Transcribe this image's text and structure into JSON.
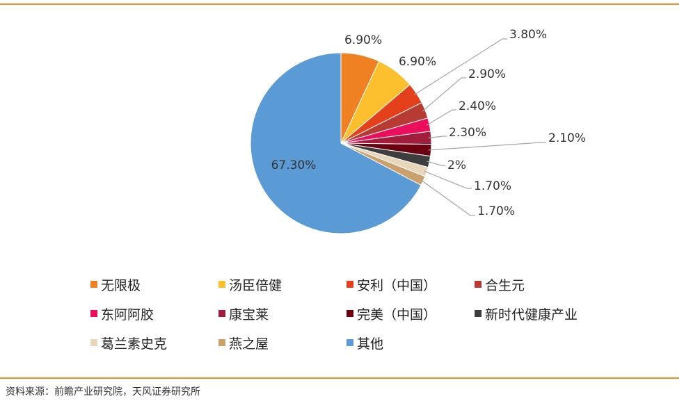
{
  "chart_data": {
    "type": "pie",
    "slices": [
      {
        "name": "无限极",
        "value": 6.9,
        "label": "6.90%",
        "color": "#f08122"
      },
      {
        "name": "汤臣倍健",
        "value": 6.9,
        "label": "6.90%",
        "color": "#fcbf2d"
      },
      {
        "name": "安利（中国）",
        "value": 3.8,
        "label": "3.80%",
        "color": "#e5401c"
      },
      {
        "name": "合生元",
        "value": 2.9,
        "label": "2.90%",
        "color": "#b73a33"
      },
      {
        "name": "东阿阿胶",
        "value": 2.4,
        "label": "2.40%",
        "color": "#ea0e5c"
      },
      {
        "name": "康宝莱",
        "value": 2.3,
        "label": "2.30%",
        "color": "#a01e3c"
      },
      {
        "name": "完美（中国）",
        "value": 2.1,
        "label": "2.10%",
        "color": "#6a0010"
      },
      {
        "name": "新时代健康产业",
        "value": 2.0,
        "label": "2%",
        "color": "#3e3e3e"
      },
      {
        "name": "葛兰素史克",
        "value": 1.7,
        "label": "1.70%",
        "color": "#e8d6bb"
      },
      {
        "name": "燕之屋",
        "value": 1.7,
        "label": "1.70%",
        "color": "#caa06c"
      },
      {
        "name": "其他",
        "value": 67.3,
        "label": "67.30%",
        "color": "#5b9bd5"
      }
    ],
    "legend_position": "bottom"
  },
  "source": "资料来源：前瞻产业研究院，天风证券研究所"
}
